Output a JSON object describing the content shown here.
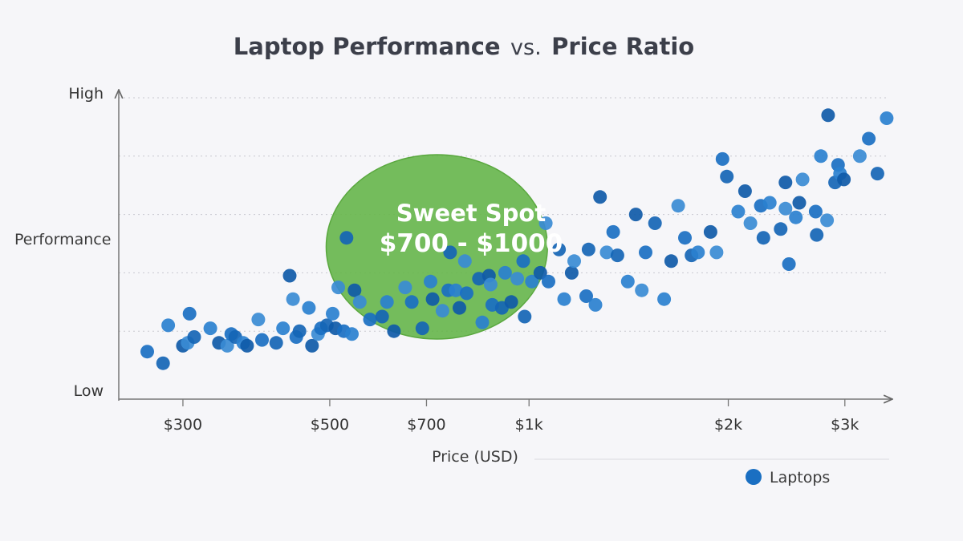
{
  "chart_data": {
    "type": "scatter",
    "title_parts": [
      "Laptop Performance",
      "vs.",
      "Price Ratio"
    ],
    "xlabel": "Price (USD)",
    "ylabel": "Performance",
    "x_scale": "log",
    "x_ticks": [
      {
        "value": 300,
        "label": "$300"
      },
      {
        "value": 500,
        "label": "$500"
      },
      {
        "value": 700,
        "label": "$700"
      },
      {
        "value": 1000,
        "label": "$1k"
      },
      {
        "value": 2000,
        "label": "$2k"
      },
      {
        "value": 3000,
        "label": "$3k"
      }
    ],
    "xlim": [
      240,
      3500
    ],
    "ylim": [
      0,
      100
    ],
    "y_tick_labels": [
      {
        "value": 100,
        "label": "High"
      },
      {
        "value": 0,
        "label": "Low"
      }
    ],
    "grid": "horizontal dotted",
    "legend_position": "bottom-right",
    "annotation": {
      "lines": [
        "Sweet Spot",
        "$700 - $1000"
      ],
      "x_range": [
        700,
        1000
      ],
      "color": "#62b446"
    },
    "series": [
      {
        "name": "Laptops",
        "color": "#1a6fc2",
        "points": [
          [
            265,
            13
          ],
          [
            280,
            9
          ],
          [
            285,
            22
          ],
          [
            300,
            15
          ],
          [
            305,
            16
          ],
          [
            307,
            26
          ],
          [
            312,
            18
          ],
          [
            330,
            21
          ],
          [
            340,
            16
          ],
          [
            350,
            15
          ],
          [
            355,
            19
          ],
          [
            360,
            18
          ],
          [
            370,
            16
          ],
          [
            375,
            15
          ],
          [
            390,
            24
          ],
          [
            395,
            17
          ],
          [
            415,
            16
          ],
          [
            425,
            21
          ],
          [
            435,
            39
          ],
          [
            440,
            31
          ],
          [
            445,
            18
          ],
          [
            450,
            20
          ],
          [
            465,
            28
          ],
          [
            470,
            15
          ],
          [
            480,
            19
          ],
          [
            485,
            21
          ],
          [
            495,
            22
          ],
          [
            505,
            26
          ],
          [
            510,
            21
          ],
          [
            515,
            35
          ],
          [
            525,
            20
          ],
          [
            530,
            52
          ],
          [
            540,
            19
          ],
          [
            545,
            34
          ],
          [
            555,
            30
          ],
          [
            575,
            24
          ],
          [
            600,
            25
          ],
          [
            610,
            30
          ],
          [
            625,
            20
          ],
          [
            650,
            35
          ],
          [
            665,
            30
          ],
          [
            690,
            21
          ],
          [
            710,
            37
          ],
          [
            715,
            31
          ],
          [
            740,
            27
          ],
          [
            755,
            34
          ],
          [
            760,
            47
          ],
          [
            775,
            34
          ],
          [
            785,
            28
          ],
          [
            800,
            44
          ],
          [
            805,
            33
          ],
          [
            840,
            38
          ],
          [
            850,
            23
          ],
          [
            870,
            39
          ],
          [
            875,
            36
          ],
          [
            880,
            29
          ],
          [
            910,
            28
          ],
          [
            920,
            40
          ],
          [
            940,
            30
          ],
          [
            960,
            38
          ],
          [
            980,
            44
          ],
          [
            985,
            25
          ],
          [
            1010,
            37
          ],
          [
            1040,
            40
          ],
          [
            1060,
            57
          ],
          [
            1070,
            37
          ],
          [
            1110,
            48
          ],
          [
            1130,
            31
          ],
          [
            1160,
            40
          ],
          [
            1170,
            44
          ],
          [
            1220,
            32
          ],
          [
            1230,
            48
          ],
          [
            1260,
            29
          ],
          [
            1280,
            66
          ],
          [
            1310,
            47
          ],
          [
            1340,
            54
          ],
          [
            1360,
            46
          ],
          [
            1410,
            37
          ],
          [
            1450,
            60
          ],
          [
            1480,
            34
          ],
          [
            1500,
            47
          ],
          [
            1550,
            57
          ],
          [
            1600,
            31
          ],
          [
            1640,
            44
          ],
          [
            1680,
            63
          ],
          [
            1720,
            52
          ],
          [
            1760,
            46
          ],
          [
            1800,
            47
          ],
          [
            1880,
            54
          ],
          [
            1920,
            47
          ],
          [
            1960,
            79
          ],
          [
            1990,
            73
          ],
          [
            2070,
            61
          ],
          [
            2120,
            68
          ],
          [
            2160,
            57
          ],
          [
            2240,
            63
          ],
          [
            2260,
            52
          ],
          [
            2310,
            64
          ],
          [
            2440,
            71
          ],
          [
            2440,
            62
          ],
          [
            2470,
            43
          ],
          [
            2400,
            55
          ],
          [
            2530,
            59
          ],
          [
            2560,
            64
          ],
          [
            2590,
            72
          ],
          [
            2710,
            61
          ],
          [
            2720,
            53
          ],
          [
            2760,
            80
          ],
          [
            2830,
            94
          ],
          [
            2820,
            58
          ],
          [
            2930,
            77
          ],
          [
            2900,
            71
          ],
          [
            2950,
            74
          ],
          [
            2990,
            72
          ],
          [
            3160,
            80
          ],
          [
            3260,
            86
          ],
          [
            3360,
            74
          ],
          [
            3470,
            93
          ]
        ]
      }
    ]
  }
}
